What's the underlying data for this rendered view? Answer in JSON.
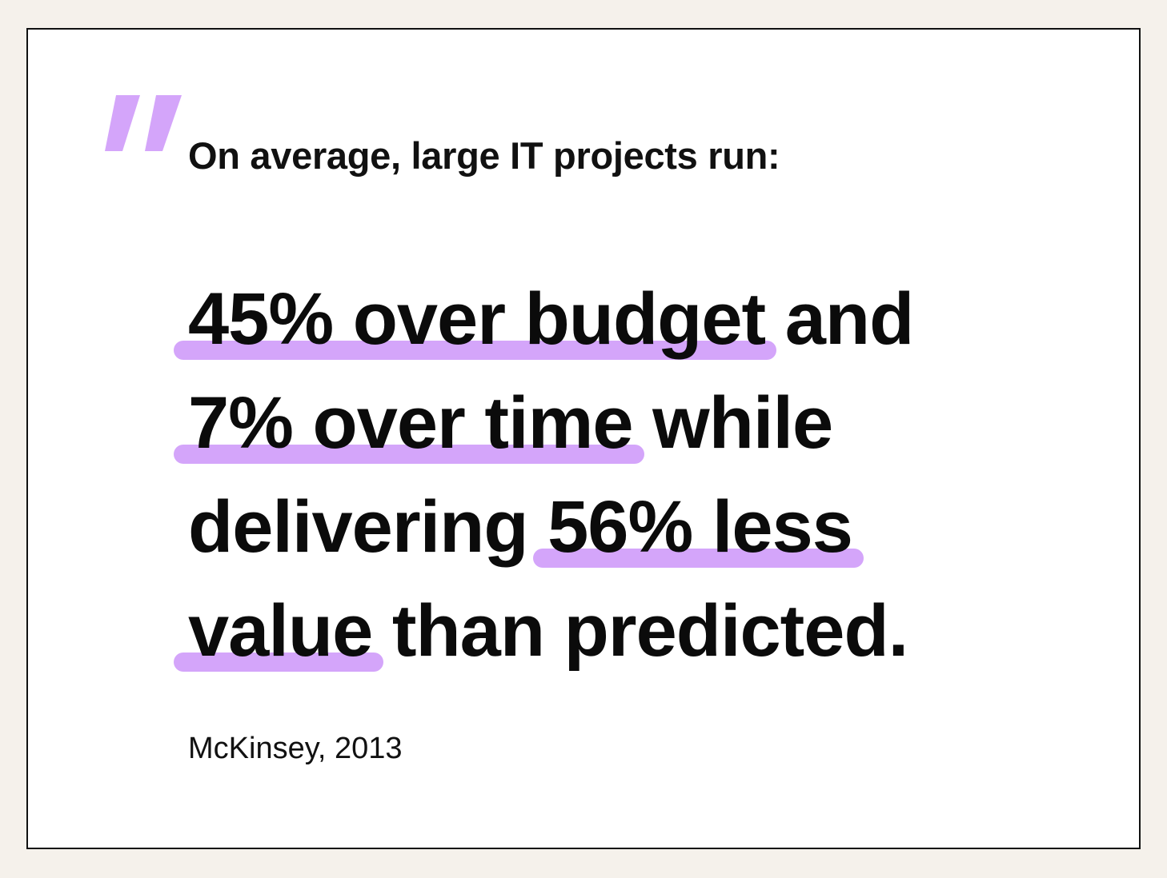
{
  "intro": "On average, large IT projects run:",
  "quote": {
    "lines": [
      {
        "segments": [
          {
            "text": "45% over budget",
            "highlight": true
          },
          {
            "text": " and",
            "highlight": false
          }
        ]
      },
      {
        "segments": [
          {
            "text": "7% over time",
            "highlight": true
          },
          {
            "text": " while",
            "highlight": false
          }
        ]
      },
      {
        "segments": [
          {
            "text": "delivering ",
            "highlight": false
          },
          {
            "text": "56% less",
            "highlight": true
          }
        ]
      },
      {
        "segments": [
          {
            "text": "value",
            "highlight": true
          },
          {
            "text": " than predicted.",
            "highlight": false
          }
        ]
      }
    ]
  },
  "source": "McKinsey, 2013"
}
